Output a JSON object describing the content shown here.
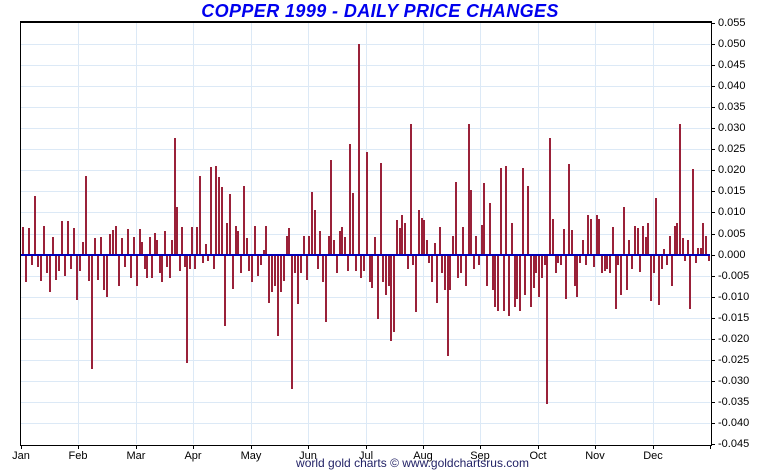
{
  "header": {
    "title": "COPPER 1999 - DAILY PRICE CHANGES",
    "title_color": "#0000EE"
  },
  "footer": {
    "text": "world gold charts © www.goldchartsrus.com",
    "color": "#222266"
  },
  "chart_data": {
    "type": "bar",
    "title": "COPPER 1999 - DAILY PRICE CHANGES",
    "xlabel": "",
    "ylabel": "",
    "ylim": [
      -0.045,
      0.055
    ],
    "ytick_step": 0.005,
    "ytick_labels": [
      "0.055",
      "0.050",
      "0.045",
      "0.040",
      "0.035",
      "0.030",
      "0.025",
      "0.020",
      "0.015",
      "0.010",
      "0.005",
      "0.000",
      "-0.005",
      "-0.010",
      "-0.015",
      "-0.020",
      "-0.025",
      "-0.030",
      "-0.035",
      "-0.040",
      "-0.045"
    ],
    "grid": true,
    "legend_position": "none",
    "bar_color": "#9A2139",
    "zero_line_color": "#0000BB",
    "grid_color": "#DCE9F6",
    "axis_color": "#000000",
    "categories": [
      "Jan",
      "Feb",
      "Mar",
      "Apr",
      "May",
      "Jun",
      "Jul",
      "Aug",
      "Sep",
      "Oct",
      "Nov",
      "Dec"
    ],
    "series": [
      {
        "name": "daily price change",
        "monthly_values": [
          {
            "month": "Jan",
            "values": [
              0.0065,
              -0.0065,
              0.0063,
              -0.0025,
              0.0139,
              -0.003,
              -0.0062,
              0.0068,
              -0.0045,
              -0.0088,
              0.0042,
              -0.006,
              -0.0038,
              0.0079,
              -0.0052,
              0.0079,
              -0.0035,
              0.0062,
              -0.0108
            ]
          },
          {
            "month": "Feb",
            "values": [
              -0.004,
              0.003,
              0.0187,
              -0.0063,
              -0.0271,
              0.004,
              -0.006,
              0.0042,
              -0.0085,
              -0.0101,
              0.005,
              0.0058,
              0.0068,
              -0.0075,
              0.0039,
              -0.003,
              0.006,
              -0.0055,
              0.0042
            ]
          },
          {
            "month": "Mar",
            "values": [
              -0.0075,
              0.006,
              0.003,
              -0.0035,
              -0.0055,
              0.0042,
              -0.0055,
              0.0052,
              0.0035,
              -0.0045,
              -0.0065,
              0.0055,
              -0.003,
              -0.0055,
              0.0035,
              0.0278,
              0.0113,
              -0.004,
              0.0065,
              -0.003,
              -0.0258,
              -0.0035,
              0.0065
            ]
          },
          {
            "month": "Apr",
            "values": [
              -0.0035,
              0.0065,
              0.0186,
              -0.002,
              0.0025,
              -0.0015,
              0.0208,
              -0.0035,
              0.021,
              0.0184,
              0.016,
              -0.0169,
              0.0075,
              0.0144,
              -0.0083,
              0.0068,
              0.0055,
              -0.0045,
              0.0164,
              0.004,
              -0.004
            ]
          },
          {
            "month": "May",
            "values": [
              -0.0065,
              0.0068,
              -0.005,
              -0.0025,
              0.001,
              0.0069,
              -0.0115,
              -0.009,
              -0.0075,
              -0.0194,
              -0.009,
              -0.0062,
              0.0045,
              0.0062,
              -0.032,
              -0.0045,
              -0.0118,
              -0.0045,
              0.0045,
              -0.006
            ]
          },
          {
            "month": "Jun",
            "values": [
              0.0045,
              0.0148,
              0.0105,
              -0.0035,
              0.0055,
              -0.0065,
              -0.016,
              0.0045,
              0.0225,
              0.0035,
              -0.0045,
              0.0055,
              0.0065,
              0.0042,
              -0.004,
              0.0263,
              0.0146,
              -0.004,
              0.05,
              -0.0055,
              -0.004
            ]
          },
          {
            "month": "Jul",
            "values": [
              0.0243,
              -0.0065,
              -0.008,
              0.0042,
              -0.0152,
              0.0217,
              -0.0065,
              -0.0095,
              -0.0075,
              -0.0206,
              -0.0185,
              0.0082,
              0.0062,
              0.0095,
              0.0075,
              -0.0035,
              0.0309,
              -0.0025,
              -0.0136,
              0.0105,
              0.0088
            ]
          },
          {
            "month": "Aug",
            "values": [
              0.0082,
              0.0035,
              -0.002,
              -0.0065,
              0.0028,
              -0.0115,
              0.0065,
              -0.0045,
              -0.0085,
              -0.024,
              -0.0085,
              0.0045,
              0.0173,
              -0.0055,
              -0.0045,
              0.0065,
              -0.0075,
              0.031,
              0.0153,
              -0.0035,
              0.0045,
              -0.0025
            ]
          },
          {
            "month": "Sep",
            "values": [
              0.007,
              0.0171,
              -0.0075,
              0.0122,
              -0.0085,
              -0.0125,
              -0.0135,
              0.0205,
              -0.0135,
              0.021,
              -0.0145,
              0.0076,
              -0.0125,
              -0.0105,
              -0.0135,
              0.0205,
              -0.0095,
              0.0162,
              -0.0125,
              -0.008,
              -0.0045
            ]
          },
          {
            "month": "Oct",
            "values": [
              -0.0102,
              -0.0055,
              -0.0025,
              -0.0356,
              0.0277,
              0.0084,
              -0.0045,
              -0.002,
              -0.0025,
              0.006,
              -0.0105,
              0.0215,
              0.0058,
              -0.0075,
              -0.0102,
              -0.002,
              0.0035,
              -0.0025,
              0.0095,
              0.0085,
              -0.003
            ]
          },
          {
            "month": "Nov",
            "values": [
              0.0095,
              0.0085,
              -0.0045,
              -0.004,
              -0.0035,
              -0.0045,
              0.0065,
              -0.013,
              -0.0025,
              -0.0095,
              0.0112,
              -0.0085,
              0.0035,
              -0.0035,
              0.0068,
              0.0063,
              -0.0042,
              0.0068,
              0.0042,
              0.0075,
              -0.011
            ]
          },
          {
            "month": "Dec",
            "values": [
              -0.0045,
              0.0135,
              -0.012,
              -0.0035,
              0.0012,
              -0.0025,
              0.0045,
              -0.0075,
              0.0068,
              0.0075,
              0.0309,
              0.004,
              -0.0015,
              0.0035,
              -0.013,
              0.0203,
              -0.002,
              0.0015,
              0.0015,
              0.0075,
              0.0045,
              -0.0015
            ]
          }
        ]
      }
    ]
  }
}
